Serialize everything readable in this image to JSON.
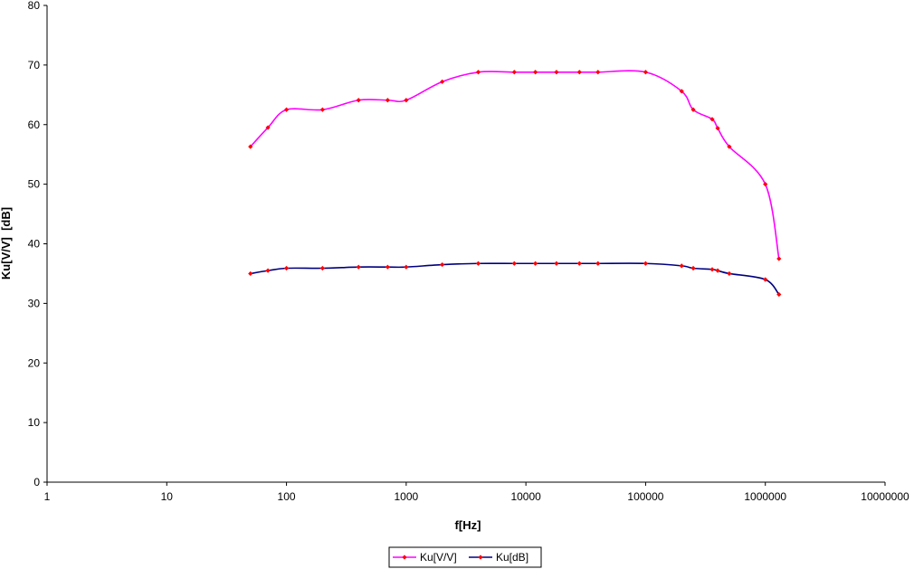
{
  "chart_data": {
    "type": "line",
    "title": "",
    "xlabel": "f[Hz]",
    "ylabel": "Ku[V/V]  [dB]",
    "x_scale": "log",
    "xlim": [
      1,
      10000000
    ],
    "ylim": [
      0,
      80
    ],
    "x_ticks": [
      "1",
      "10",
      "100",
      "1000",
      "10000",
      "100000",
      "1000000",
      "10000000"
    ],
    "y_ticks": [
      "0",
      "10",
      "20",
      "30",
      "40",
      "50",
      "60",
      "70",
      "80"
    ],
    "grid": false,
    "legend_position": "bottom",
    "x": [
      50,
      70,
      100,
      200,
      400,
      700,
      1000,
      2000,
      4000,
      8000,
      12000,
      18000,
      28000,
      40000,
      100000,
      200000,
      250000,
      360000,
      400000,
      500000,
      1000000,
      1300000
    ],
    "series": [
      {
        "name": "Ku[V/V]",
        "color": "#ff00ff",
        "marker_color": "#ff0000",
        "values": [
          56.3,
          59.5,
          62.5,
          62.5,
          64.1,
          64.1,
          64.1,
          67.2,
          68.8,
          68.8,
          68.8,
          68.8,
          68.8,
          68.8,
          68.8,
          65.6,
          62.5,
          60.9,
          59.4,
          56.3,
          50.0,
          37.5
        ]
      },
      {
        "name": "Ku[dB]",
        "color": "#000080",
        "marker_color": "#ff0000",
        "values": [
          35.0,
          35.5,
          35.9,
          35.9,
          36.1,
          36.1,
          36.1,
          36.5,
          36.7,
          36.7,
          36.7,
          36.7,
          36.7,
          36.7,
          36.7,
          36.3,
          35.9,
          35.7,
          35.5,
          35.0,
          34.0,
          31.5
        ]
      }
    ]
  }
}
